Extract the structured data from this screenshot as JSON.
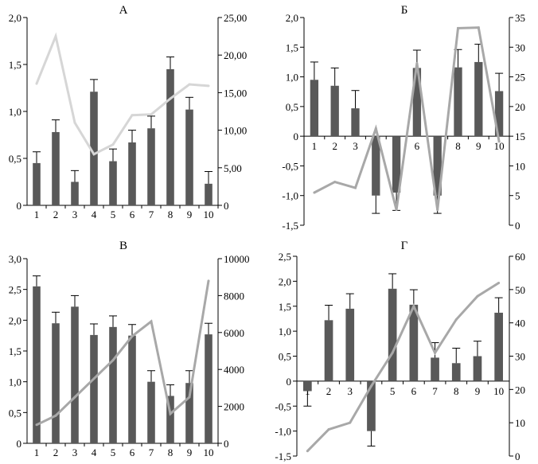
{
  "chart_data": [
    {
      "type": "bar",
      "title": "А",
      "categories": [
        "1",
        "2",
        "3",
        "4",
        "5",
        "6",
        "7",
        "8",
        "9",
        "10"
      ],
      "series": [
        {
          "name": "bars",
          "axis": "left",
          "values": [
            0.45,
            0.78,
            0.25,
            1.21,
            0.47,
            0.67,
            0.82,
            1.45,
            1.02,
            0.23
          ],
          "errors": [
            0.12,
            0.13,
            0.12,
            0.13,
            0.13,
            0.13,
            0.13,
            0.13,
            0.13,
            0.13
          ]
        },
        {
          "name": "line",
          "axis": "right",
          "type": "line",
          "values": [
            16.2,
            22.5,
            11.0,
            6.8,
            8.1,
            12.0,
            12.1,
            14.2,
            16.1,
            15.9
          ]
        }
      ],
      "ylim": [
        0,
        2.0
      ],
      "y2lim": [
        0,
        25
      ],
      "yticks": [
        "0",
        "0,5",
        "1,0",
        "1,5",
        "2,0"
      ],
      "y2ticks": [
        "0",
        "5,00",
        "10,00",
        "15,00",
        "20,00",
        "25,00"
      ],
      "colors": {
        "bar": "#595959",
        "line": "#d6d6d6"
      }
    },
    {
      "type": "bar",
      "title": "Б",
      "categories": [
        "1",
        "2",
        "3",
        "4",
        "5",
        "6",
        "7",
        "8",
        "9",
        "10"
      ],
      "series": [
        {
          "name": "bars",
          "axis": "left",
          "values": [
            0.95,
            0.85,
            0.47,
            -1.0,
            -0.95,
            1.15,
            -1.0,
            1.16,
            1.25,
            0.76
          ],
          "errors": [
            0.3,
            0.3,
            0.3,
            0.3,
            0.3,
            0.3,
            0.3,
            0.3,
            0.3,
            0.3
          ]
        },
        {
          "name": "line",
          "axis": "right",
          "type": "line",
          "values": [
            5.5,
            7.3,
            6.3,
            16.3,
            2.6,
            27.3,
            2.6,
            33.2,
            33.3,
            14.1
          ]
        }
      ],
      "ylim": [
        -1.5,
        2.0
      ],
      "y2lim": [
        0,
        35
      ],
      "yticks": [
        "-1,5",
        "-1,0",
        "-0,5",
        "0",
        "0,5",
        "1,0",
        "1,5",
        "2,0"
      ],
      "y2ticks": [
        "0",
        "5",
        "10",
        "15",
        "20",
        "25",
        "30",
        "35"
      ],
      "colors": {
        "bar": "#595959",
        "line": "#a8a8a8"
      }
    },
    {
      "type": "bar",
      "title": "В",
      "categories": [
        "1",
        "2",
        "3",
        "4",
        "5",
        "6",
        "7",
        "8",
        "9",
        "10"
      ],
      "series": [
        {
          "name": "bars",
          "axis": "left",
          "values": [
            2.55,
            1.95,
            2.22,
            1.76,
            1.89,
            1.75,
            1.0,
            0.77,
            0.98,
            1.77
          ],
          "errors": [
            0.17,
            0.18,
            0.18,
            0.18,
            0.18,
            0.18,
            0.18,
            0.18,
            0.2,
            0.18
          ]
        },
        {
          "name": "line",
          "axis": "right",
          "type": "line",
          "values": [
            1000,
            1500,
            2500,
            3500,
            4500,
            5800,
            6600,
            1600,
            2500,
            8800
          ]
        }
      ],
      "ylim": [
        0,
        3.0
      ],
      "y2lim": [
        0,
        10000
      ],
      "yticks": [
        "0",
        "0,5",
        "1,0",
        "1,5",
        "2,0",
        "2,5",
        "3,0"
      ],
      "y2ticks": [
        "0",
        "2000",
        "4000",
        "6000",
        "8000",
        "10000"
      ],
      "colors": {
        "bar": "#595959",
        "line": "#a8a8a8"
      }
    },
    {
      "type": "bar",
      "title": "Г",
      "categories": [
        "1",
        "2",
        "3",
        "4",
        "5",
        "6",
        "7",
        "8",
        "9",
        "10"
      ],
      "series": [
        {
          "name": "bars",
          "axis": "left",
          "values": [
            -0.2,
            1.22,
            1.45,
            -1.0,
            1.85,
            1.53,
            0.47,
            0.36,
            0.5,
            1.37
          ],
          "errors": [
            0.3,
            0.3,
            0.3,
            0.3,
            0.3,
            0.3,
            0.3,
            0.3,
            0.3,
            0.3
          ]
        },
        {
          "name": "line",
          "axis": "right",
          "type": "line",
          "values": [
            1.5,
            8.0,
            10.0,
            21.0,
            31.0,
            45.0,
            31.0,
            41.0,
            48.0,
            52.0
          ]
        }
      ],
      "ylim": [
        -1.5,
        2.5
      ],
      "y2lim": [
        0,
        60
      ],
      "yticks": [
        "-1,5",
        "-1,0",
        "-0,5",
        "0",
        "0,5",
        "1,0",
        "1,5",
        "2,0",
        "2,5"
      ],
      "y2ticks": [
        "0",
        "10",
        "20",
        "30",
        "40",
        "50",
        "60"
      ],
      "colors": {
        "bar": "#595959",
        "line": "#a8a8a8"
      }
    }
  ]
}
